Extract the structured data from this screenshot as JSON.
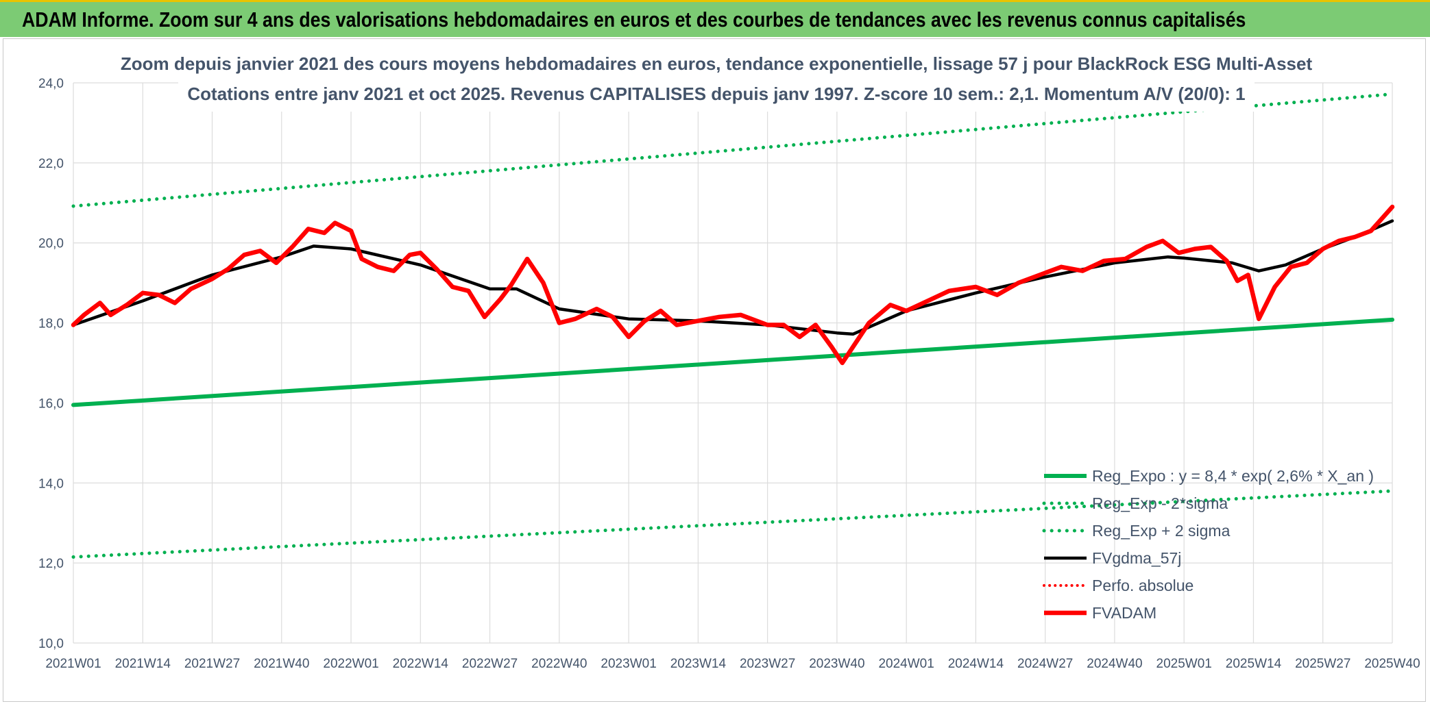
{
  "header": {
    "title": "ADAM Informe. Zoom sur 4 ans des valorisations hebdomadaires en euros et des courbes de tendances avec les revenus connus capitalisés"
  },
  "colors": {
    "header_bg": "#7ccb74",
    "reg_expo": "#00b050",
    "fvgdma": "#000000",
    "fvadam": "#ff0000",
    "text": "#44546a"
  },
  "chart_data": {
    "type": "line",
    "title_line1": "Zoom depuis janvier 2021 des cours moyens hebdomadaires en euros, tendance exponentielle, lissage 57 j pour BlackRock ESG Multi-Asset",
    "title_line2": "Cotations entre janv 2021 et oct 2025. Revenus CAPITALISES depuis janv 1997. Z-score 10 sem.: 2,1. Momentum A/V (20/0): 1",
    "ylim": [
      10,
      24
    ],
    "y_ticks": [
      "10,0",
      "12,0",
      "14,0",
      "16,0",
      "18,0",
      "20,0",
      "22,0",
      "24,0"
    ],
    "x_ticks": [
      "2021W01",
      "2021W14",
      "2021W27",
      "2021W40",
      "2022W01",
      "2022W14",
      "2022W27",
      "2022W40",
      "2023W01",
      "2023W14",
      "2023W27",
      "2023W40",
      "2024W01",
      "2024W14",
      "2024W27",
      "2024W40",
      "2025W01",
      "2025W14",
      "2025W27",
      "2025W40"
    ],
    "grid": true,
    "legend_position": "bottom-right",
    "series": [
      {
        "name": "Reg_Expo : y = 8,4 * exp( 2,6% *  X_an )",
        "style": "solid-green",
        "x": [
          "2021W01",
          "2025W40"
        ],
        "y": [
          15.95,
          18.08
        ]
      },
      {
        "name": "Reg_Exp - 2*sigma",
        "style": "dotted-green",
        "x": [
          "2021W01",
          "2025W40"
        ],
        "y": [
          12.15,
          13.8
        ]
      },
      {
        "name": "Reg_Exp + 2 sigma",
        "style": "dotted-green",
        "x": [
          "2021W01",
          "2025W40"
        ],
        "y": [
          20.92,
          23.72
        ]
      },
      {
        "name": "FVgdma_57j",
        "style": "solid-black",
        "x": [
          "2021W01",
          "2021W14",
          "2021W27",
          "2021W40",
          "2021W46",
          "2022W01",
          "2022W14",
          "2022W27",
          "2022W32",
          "2022W40",
          "2023W01",
          "2023W14",
          "2023W27",
          "2023W40",
          "2023W43",
          "2024W01",
          "2024W14",
          "2024W27",
          "2024W40",
          "2024W50",
          "2025W01",
          "2025W10",
          "2025W15",
          "2025W20",
          "2025W27",
          "2025W34",
          "2025W40"
        ],
        "y": [
          17.95,
          18.55,
          19.2,
          19.65,
          19.92,
          19.85,
          19.45,
          18.85,
          18.85,
          18.35,
          18.1,
          18.05,
          17.95,
          17.75,
          17.72,
          18.3,
          18.75,
          19.15,
          19.5,
          19.65,
          19.62,
          19.5,
          19.3,
          19.45,
          19.85,
          20.2,
          20.55
        ]
      },
      {
        "name": "Perfo. absolue",
        "style": "dotted-red",
        "x": [],
        "y": []
      },
      {
        "name": "FVADAM",
        "style": "solid-red",
        "x": [
          "2021W01",
          "2021W03",
          "2021W06",
          "2021W08",
          "2021W11",
          "2021W14",
          "2021W17",
          "2021W20",
          "2021W23",
          "2021W27",
          "2021W30",
          "2021W33",
          "2021W36",
          "2021W39",
          "2021W42",
          "2021W45",
          "2021W48",
          "2021W50",
          "2022W01",
          "2022W03",
          "2022W06",
          "2022W09",
          "2022W12",
          "2022W14",
          "2022W17",
          "2022W20",
          "2022W23",
          "2022W26",
          "2022W29",
          "2022W31",
          "2022W34",
          "2022W37",
          "2022W40",
          "2022W43",
          "2022W47",
          "2022W50",
          "2023W01",
          "2023W04",
          "2023W07",
          "2023W10",
          "2023W14",
          "2023W18",
          "2023W22",
          "2023W27",
          "2023W30",
          "2023W33",
          "2023W36",
          "2023W39",
          "2023W41",
          "2023W43",
          "2023W46",
          "2023W50",
          "2024W01",
          "2024W05",
          "2024W09",
          "2024W14",
          "2024W18",
          "2024W22",
          "2024W27",
          "2024W30",
          "2024W34",
          "2024W38",
          "2024W42",
          "2024W46",
          "2024W49",
          "2024W52",
          "2025W03",
          "2025W06",
          "2025W09",
          "2025W11",
          "2025W13",
          "2025W15",
          "2025W18",
          "2025W21",
          "2025W24",
          "2025W27",
          "2025W30",
          "2025W33",
          "2025W36",
          "2025W38",
          "2025W40"
        ],
        "y": [
          17.95,
          18.2,
          18.5,
          18.2,
          18.45,
          18.75,
          18.7,
          18.5,
          18.85,
          19.1,
          19.35,
          19.7,
          19.8,
          19.5,
          19.9,
          20.35,
          20.25,
          20.5,
          20.3,
          19.6,
          19.4,
          19.3,
          19.7,
          19.75,
          19.35,
          18.9,
          18.8,
          18.15,
          18.6,
          18.95,
          19.6,
          19.0,
          18.0,
          18.1,
          18.35,
          18.15,
          17.65,
          18.05,
          18.3,
          17.95,
          18.05,
          18.15,
          18.2,
          17.95,
          17.95,
          17.65,
          17.95,
          17.4,
          17.0,
          17.4,
          18.0,
          18.45,
          18.3,
          18.55,
          18.8,
          18.9,
          18.7,
          19.0,
          19.25,
          19.4,
          19.3,
          19.55,
          19.6,
          19.9,
          20.05,
          19.75,
          19.85,
          19.9,
          19.55,
          19.05,
          19.2,
          18.1,
          18.9,
          19.4,
          19.5,
          19.85,
          20.05,
          20.15,
          20.3,
          20.6,
          20.9
        ]
      }
    ]
  }
}
